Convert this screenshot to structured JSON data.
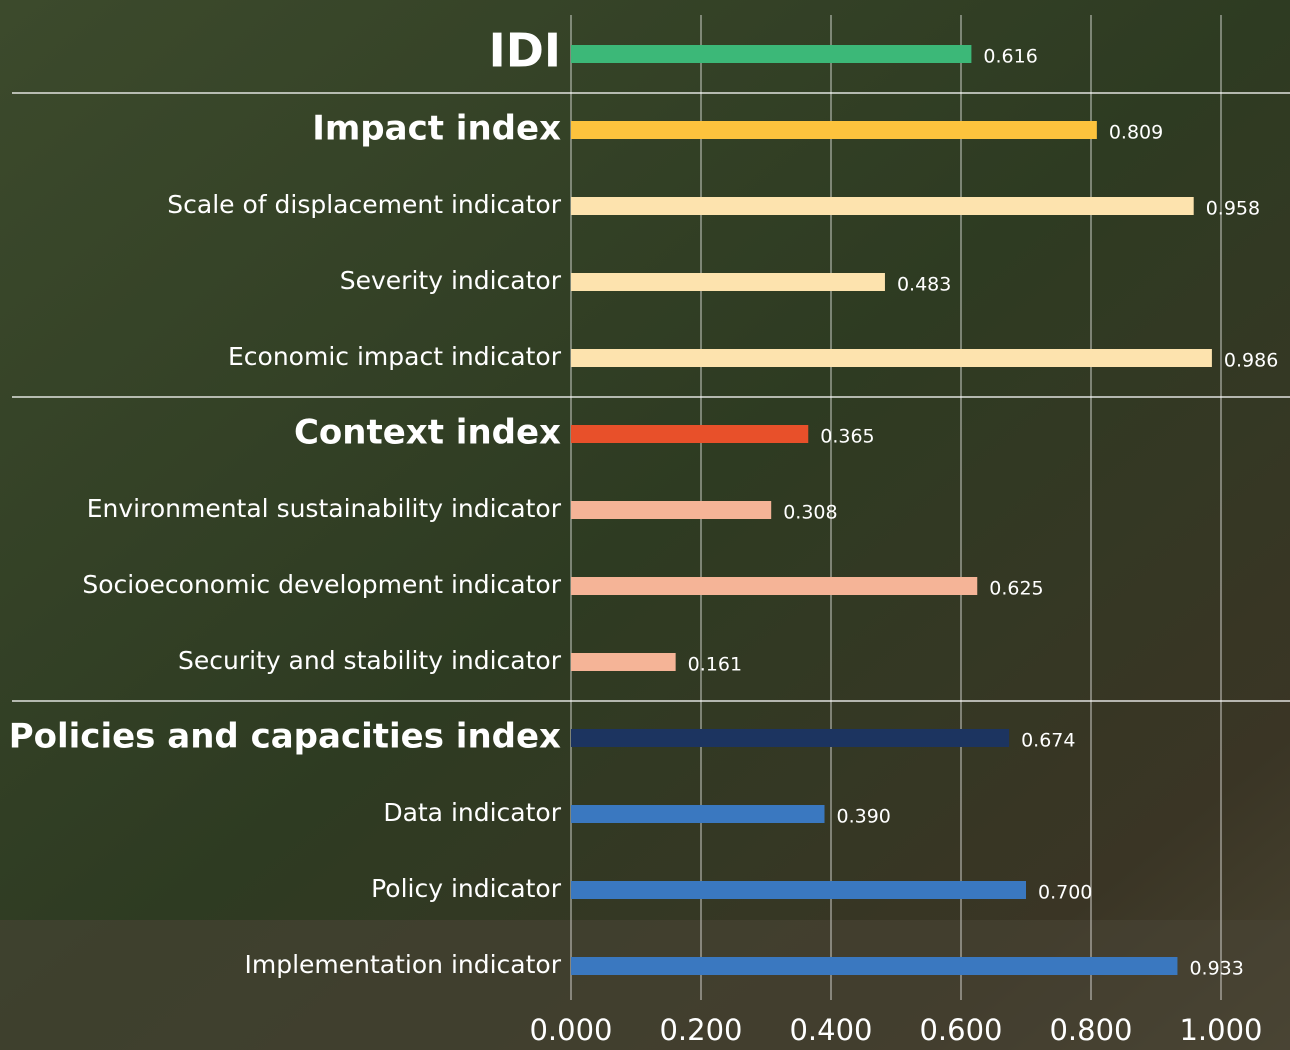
{
  "chart_data": {
    "type": "bar",
    "orientation": "horizontal",
    "groups": [
      {
        "name": "IDI",
        "color": "#3cb878",
        "value": 0.616,
        "value_label": "0.616",
        "indicators": []
      },
      {
        "name": "Impact index",
        "color": "#fdc33d",
        "value": 0.809,
        "value_label": "0.809",
        "indicators": [
          {
            "name": "Scale of displacement indicator",
            "color": "#fde3ae",
            "value": 0.958,
            "value_label": "0.958"
          },
          {
            "name": "Severity indicator",
            "color": "#fde3ae",
            "value": 0.483,
            "value_label": "0.483"
          },
          {
            "name": "Economic impact indicator",
            "color": "#fde3ae",
            "value": 0.986,
            "value_label": "0.986"
          }
        ]
      },
      {
        "name": "Context index",
        "color": "#e8502a",
        "value": 0.365,
        "value_label": "0.365",
        "indicators": [
          {
            "name": "Environmental sustainability indicator",
            "color": "#f5b497",
            "value": 0.308,
            "value_label": "0.308"
          },
          {
            "name": "Socioeconomic development indicator",
            "color": "#f5b497",
            "value": 0.625,
            "value_label": "0.625"
          },
          {
            "name": "Security and stability indicator",
            "color": "#f5b497",
            "value": 0.161,
            "value_label": "0.161"
          }
        ]
      },
      {
        "name": "Policies and capacities index",
        "color": "#1c3460",
        "value": 0.674,
        "value_label": "0.674",
        "indicators": [
          {
            "name": "Data indicator",
            "color": "#3a78c0",
            "value": 0.39,
            "value_label": "0.390"
          },
          {
            "name": "Policy indicator",
            "color": "#3a78c0",
            "value": 0.7,
            "value_label": "0.700"
          },
          {
            "name": "Implementation indicator",
            "color": "#3a78c0",
            "value": 0.933,
            "value_label": "0.933"
          }
        ]
      }
    ],
    "xlim": [
      0,
      1
    ],
    "xticks": [
      {
        "value": 0,
        "label": "0.000"
      },
      {
        "value": 0.2,
        "label": "0.200"
      },
      {
        "value": 0.4,
        "label": "0.400"
      },
      {
        "value": 0.6,
        "label": "0.600"
      },
      {
        "value": 0.8,
        "label": "0.800"
      },
      {
        "value": 1,
        "label": "1.000"
      }
    ],
    "grid": true
  }
}
